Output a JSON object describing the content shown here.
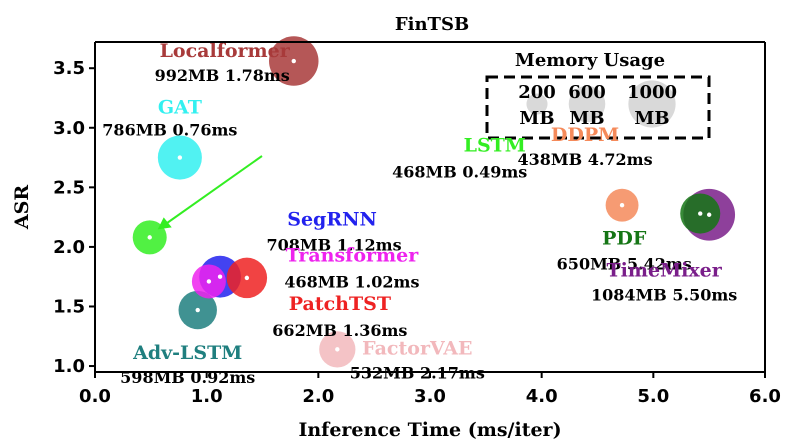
{
  "chart_data": {
    "type": "scatter",
    "title": "FinTSB",
    "xlabel": "Inference Time (ms/iter)",
    "ylabel": "ASR",
    "xlim": [
      0.0,
      6.0
    ],
    "ylim": [
      0.95,
      3.72
    ],
    "xticks": [
      "0.0",
      "1.0",
      "2.0",
      "3.0",
      "4.0",
      "5.0",
      "6.0"
    ],
    "yticks": [
      "1.0",
      "1.5",
      "2.0",
      "2.5",
      "3.0",
      "3.5"
    ],
    "grid": false,
    "size_encoding": "Memory Usage",
    "points": [
      {
        "name": "Localformer",
        "stats": "992MB 1.78ms",
        "memory_mb": 992,
        "x": 1.78,
        "y": 3.56,
        "color": "#a83a3a"
      },
      {
        "name": "GAT",
        "stats": "786MB 0.76ms",
        "memory_mb": 786,
        "x": 0.76,
        "y": 2.75,
        "color": "#33f0f0"
      },
      {
        "name": "LSTM",
        "stats": "468MB 0.49ms",
        "memory_mb": 468,
        "x": 0.49,
        "y": 2.08,
        "color": "#33ee22"
      },
      {
        "name": "SegRNN",
        "stats": "708MB 1.12ms",
        "memory_mb": 708,
        "x": 1.12,
        "y": 1.75,
        "color": "#2222ee"
      },
      {
        "name": "Transformer",
        "stats": "468MB 1.02ms",
        "memory_mb": 468,
        "x": 1.02,
        "y": 1.71,
        "color": "#ee22ee"
      },
      {
        "name": "PatchTST",
        "stats": "662MB 1.36ms",
        "memory_mb": 662,
        "x": 1.36,
        "y": 1.74,
        "color": "#ee2222"
      },
      {
        "name": "Adv-LSTM",
        "stats": "598MB 0.92ms",
        "memory_mb": 598,
        "x": 0.92,
        "y": 1.47,
        "color": "#1f7f7f"
      },
      {
        "name": "FactorVAE",
        "stats": "532MB 2.17ms",
        "memory_mb": 532,
        "x": 2.17,
        "y": 1.14,
        "color": "#f2b8bc"
      },
      {
        "name": "DDPM",
        "stats": "438MB 4.72ms",
        "memory_mb": 438,
        "x": 4.72,
        "y": 2.35,
        "color": "#f58a5a"
      },
      {
        "name": "PDF",
        "stats": "650MB 5.42ms",
        "memory_mb": 650,
        "x": 5.42,
        "y": 2.28,
        "color": "#157515"
      },
      {
        "name": "TimeMixer",
        "stats": "1084MB 5.50ms",
        "memory_mb": 1084,
        "x": 5.5,
        "y": 2.27,
        "color": "#7a1e8a"
      }
    ],
    "legend": {
      "title": "Memory Usage",
      "placement": "top-right",
      "entries": [
        {
          "value": 200,
          "line1": "200",
          "line2": "MB"
        },
        {
          "value": 600,
          "line1": "600",
          "line2": "MB"
        },
        {
          "value": 1000,
          "line1": "1000",
          "line2": "MB"
        }
      ]
    },
    "arrow": {
      "from_label": "LSTM",
      "to_point": "LSTM"
    }
  }
}
